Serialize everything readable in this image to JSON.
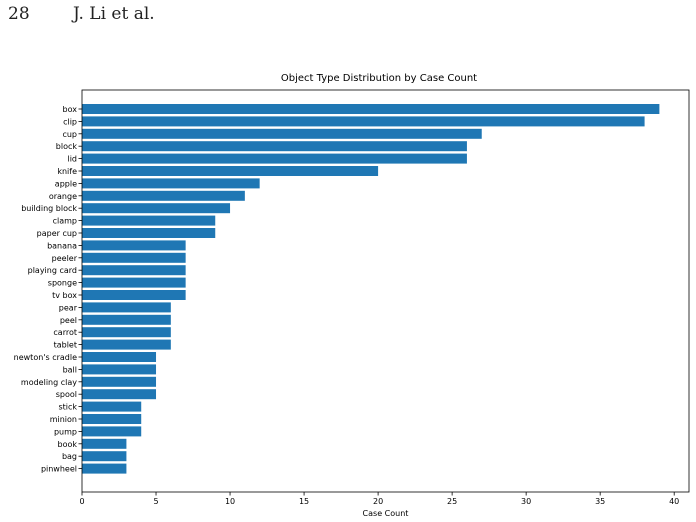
{
  "page": {
    "page_number": "28",
    "running_head": "J. Li et al."
  },
  "chart_data": {
    "type": "bar",
    "orientation": "horizontal",
    "title": "Object Type Distribution by Case Count",
    "xlabel": "Case Count",
    "ylabel": "",
    "xlim": [
      0,
      41
    ],
    "xticks": [
      "0",
      "5",
      "10",
      "15",
      "20",
      "25",
      "30",
      "35",
      "40"
    ],
    "grid": false,
    "bar_color": "#1f77b4",
    "categories": [
      "box",
      "clip",
      "cup",
      "block",
      "lid",
      "knife",
      "apple",
      "orange",
      "building block",
      "clamp",
      "paper cup",
      "banana",
      "peeler",
      "playing card",
      "sponge",
      "tv box",
      "pear",
      "peel",
      "carrot",
      "tablet",
      "newton's cradle",
      "ball",
      "modeling clay",
      "spool",
      "stick",
      "minion",
      "pump",
      "book",
      "bag",
      "pinwheel"
    ],
    "values": [
      39,
      38,
      27,
      26,
      26,
      20,
      12,
      11,
      10,
      9,
      9,
      7,
      7,
      7,
      7,
      7,
      6,
      6,
      6,
      6,
      5,
      5,
      5,
      5,
      4,
      4,
      4,
      3,
      3,
      3
    ]
  }
}
